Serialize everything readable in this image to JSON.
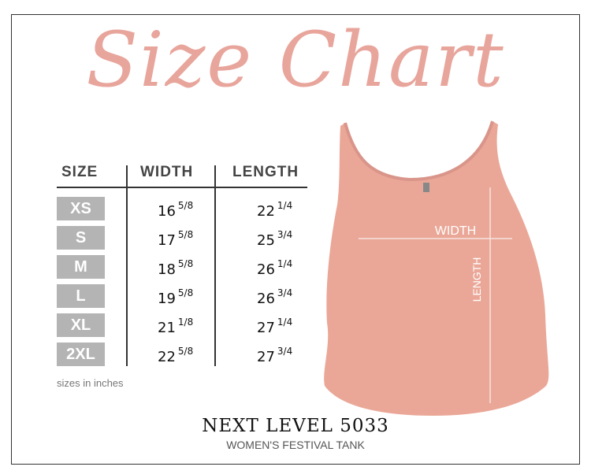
{
  "title": "Size Chart",
  "table": {
    "headers": [
      "SIZE",
      "WIDTH",
      "LENGTH"
    ],
    "rows": [
      {
        "size": "XS",
        "width": "16",
        "width_frac": "5/8",
        "length": "22",
        "length_frac": "1/4"
      },
      {
        "size": "S",
        "width": "17",
        "width_frac": "5/8",
        "length": "25",
        "length_frac": "3/4"
      },
      {
        "size": "M",
        "width": "18",
        "width_frac": "5/8",
        "length": "26",
        "length_frac": "1/4"
      },
      {
        "size": "L",
        "width": "19",
        "width_frac": "5/8",
        "length": "26",
        "length_frac": "3/4"
      },
      {
        "size": "XL",
        "width": "21",
        "width_frac": "1/8",
        "length": "27",
        "length_frac": "1/4"
      },
      {
        "size": "2XL",
        "width": "22",
        "width_frac": "5/8",
        "length": "27",
        "length_frac": "3/4"
      }
    ],
    "note": "sizes in inches"
  },
  "garment": {
    "width_label": "WIDTH",
    "length_label": "LENGTH",
    "color": "#eaa797"
  },
  "product": {
    "model": "NEXT LEVEL 5033",
    "name": "WOMEN'S FESTIVAL TANK"
  },
  "colors": {
    "title": "#e8a59c",
    "size_box": "#b4b4b4"
  }
}
